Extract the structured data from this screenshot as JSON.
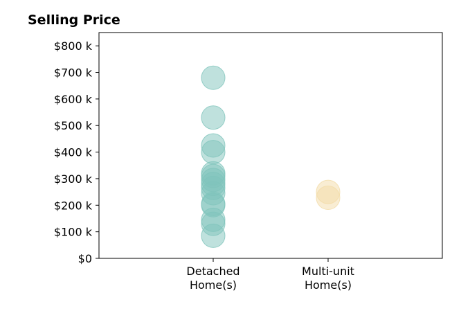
{
  "chart_data": {
    "type": "scatter",
    "title": "Selling Price",
    "xlabel": "",
    "ylabel": "",
    "ylim": [
      0,
      850000
    ],
    "y_ticks": [
      {
        "value": 0,
        "label": "$0"
      },
      {
        "value": 100000,
        "label": "$100 k"
      },
      {
        "value": 200000,
        "label": "$200 k"
      },
      {
        "value": 300000,
        "label": "$300 k"
      },
      {
        "value": 400000,
        "label": "$400 k"
      },
      {
        "value": 500000,
        "label": "$500 k"
      },
      {
        "value": 600000,
        "label": "$600 k"
      },
      {
        "value": 700000,
        "label": "$700 k"
      },
      {
        "value": 800000,
        "label": "$800 k"
      }
    ],
    "categories": [
      {
        "key": "detached",
        "label_lines": [
          "Detached",
          "Home(s)"
        ]
      },
      {
        "key": "multi_unit",
        "label_lines": [
          "Multi-unit",
          "Home(s)"
        ]
      }
    ],
    "grid": false,
    "legend": "none",
    "series": [
      {
        "category": "detached",
        "color": "#80c4bc",
        "values": [
          680000,
          530000,
          425000,
          400000,
          320000,
          310000,
          295000,
          280000,
          265000,
          245000,
          205000,
          200000,
          145000,
          130000,
          85000
        ]
      },
      {
        "category": "multi_unit",
        "color": "#f3dca8",
        "values": [
          250000,
          228000
        ]
      }
    ]
  }
}
